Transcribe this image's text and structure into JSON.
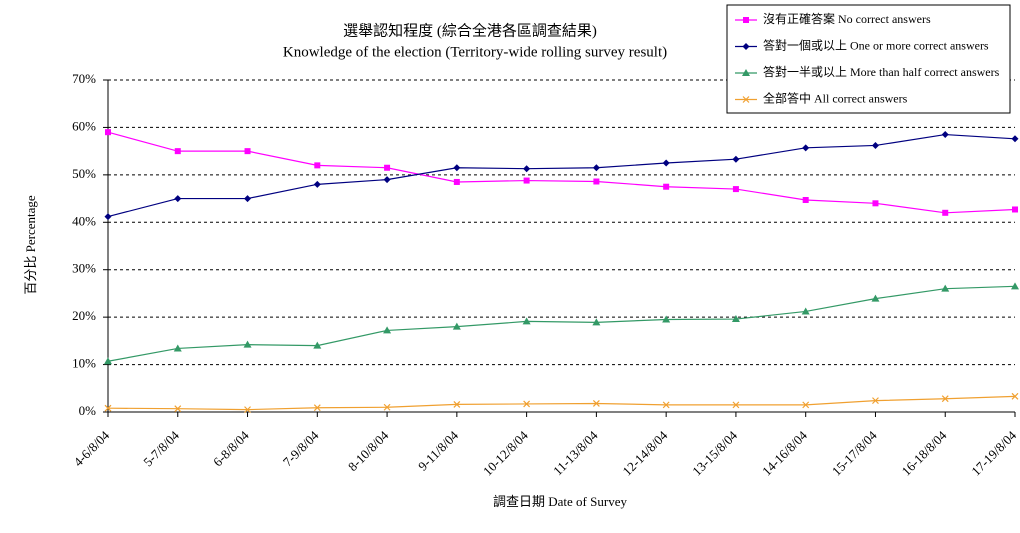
{
  "chart_data": {
    "type": "line",
    "title": "選舉認知程度 (綜合全港各區調查結果)",
    "subtitle": "Knowledge of the election (Territory-wide rolling survey result)",
    "x_label": "調查日期 Date of Survey",
    "y_label": "百分比 Percentage",
    "categories": [
      "4-6/8/04",
      "5-7/8/04",
      "6-8/8/04",
      "7-9/8/04",
      "8-10/8/04",
      "9-11/8/04",
      "10-12/8/04",
      "11-13/8/04",
      "12-14/8/04",
      "13-15/8/04",
      "14-16/8/04",
      "15-17/8/04",
      "16-18/8/04",
      "17-19/8/04"
    ],
    "series": [
      {
        "name": "沒有正確答案 No correct answers",
        "color": "#ff00ff",
        "marker": "square",
        "values": [
          59,
          55,
          55,
          52,
          51.5,
          48.5,
          48.8,
          48.6,
          47.5,
          47,
          44.7,
          44,
          42,
          42.7
        ]
      },
      {
        "name": "答對一個或以上 One or more correct answers",
        "color": "#000080",
        "marker": "diamond",
        "values": [
          41.2,
          45,
          45,
          48,
          49,
          51.5,
          51.3,
          51.5,
          52.5,
          53.3,
          55.7,
          56.2,
          58.5,
          57.6
        ]
      },
      {
        "name": "答對一半或以上 More than half correct answers",
        "color": "#339966",
        "marker": "triangle",
        "values": [
          10.7,
          13.4,
          14.2,
          14,
          17.2,
          18,
          19.1,
          18.9,
          19.5,
          19.6,
          21.2,
          23.9,
          26,
          26.5
        ]
      },
      {
        "name": "全部答中 All correct answers",
        "color": "#f0a030",
        "marker": "x",
        "values": [
          0.8,
          0.7,
          0.5,
          0.9,
          1,
          1.6,
          1.7,
          1.8,
          1.5,
          1.5,
          1.5,
          2.4,
          2.8,
          3.3
        ]
      }
    ],
    "ylim": [
      0,
      70
    ],
    "yticks": [
      {
        "value": 0,
        "label": "0%"
      },
      {
        "value": 10,
        "label": "10%"
      },
      {
        "value": 20,
        "label": "20%"
      },
      {
        "value": 30,
        "label": "30%"
      },
      {
        "value": 40,
        "label": "40%"
      },
      {
        "value": 50,
        "label": "50%"
      },
      {
        "value": 60,
        "label": "60%"
      },
      {
        "value": 70,
        "label": "70%"
      }
    ],
    "grid": true,
    "legend": "top-right"
  }
}
